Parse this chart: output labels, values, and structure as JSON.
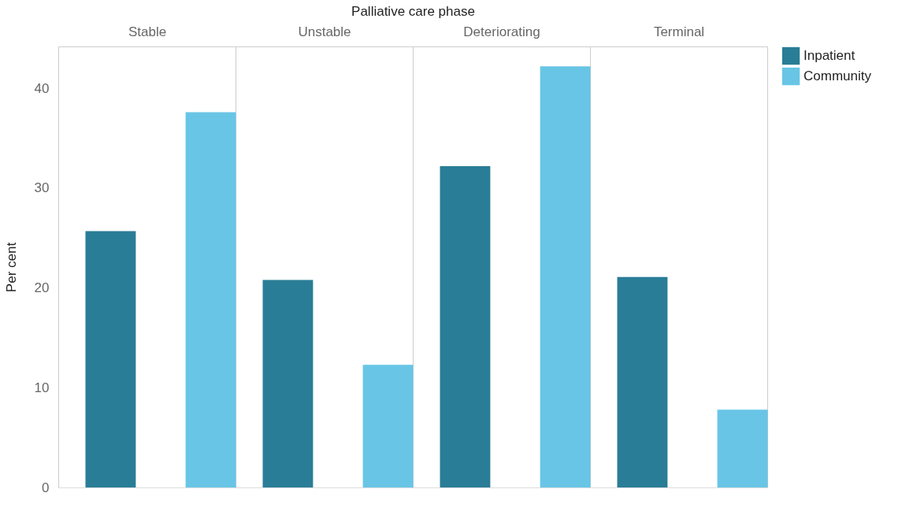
{
  "chart_data": {
    "type": "bar",
    "xlabel": "Palliative care phase",
    "ylabel": "Per cent",
    "categories": [
      "Stable",
      "Unstable",
      "Deteriorating",
      "Terminal"
    ],
    "series": [
      {
        "name": "Inpatient",
        "color": "#2a7d96",
        "values": [
          25.7,
          20.8,
          32.2,
          21.1
        ]
      },
      {
        "name": "Community",
        "color": "#68c5e6",
        "values": [
          37.6,
          12.3,
          42.2,
          7.8
        ]
      }
    ],
    "ylim": [
      0,
      44.2
    ],
    "yticks": [
      0,
      10,
      20,
      30,
      40
    ],
    "grid": "x",
    "legend": "top right"
  }
}
